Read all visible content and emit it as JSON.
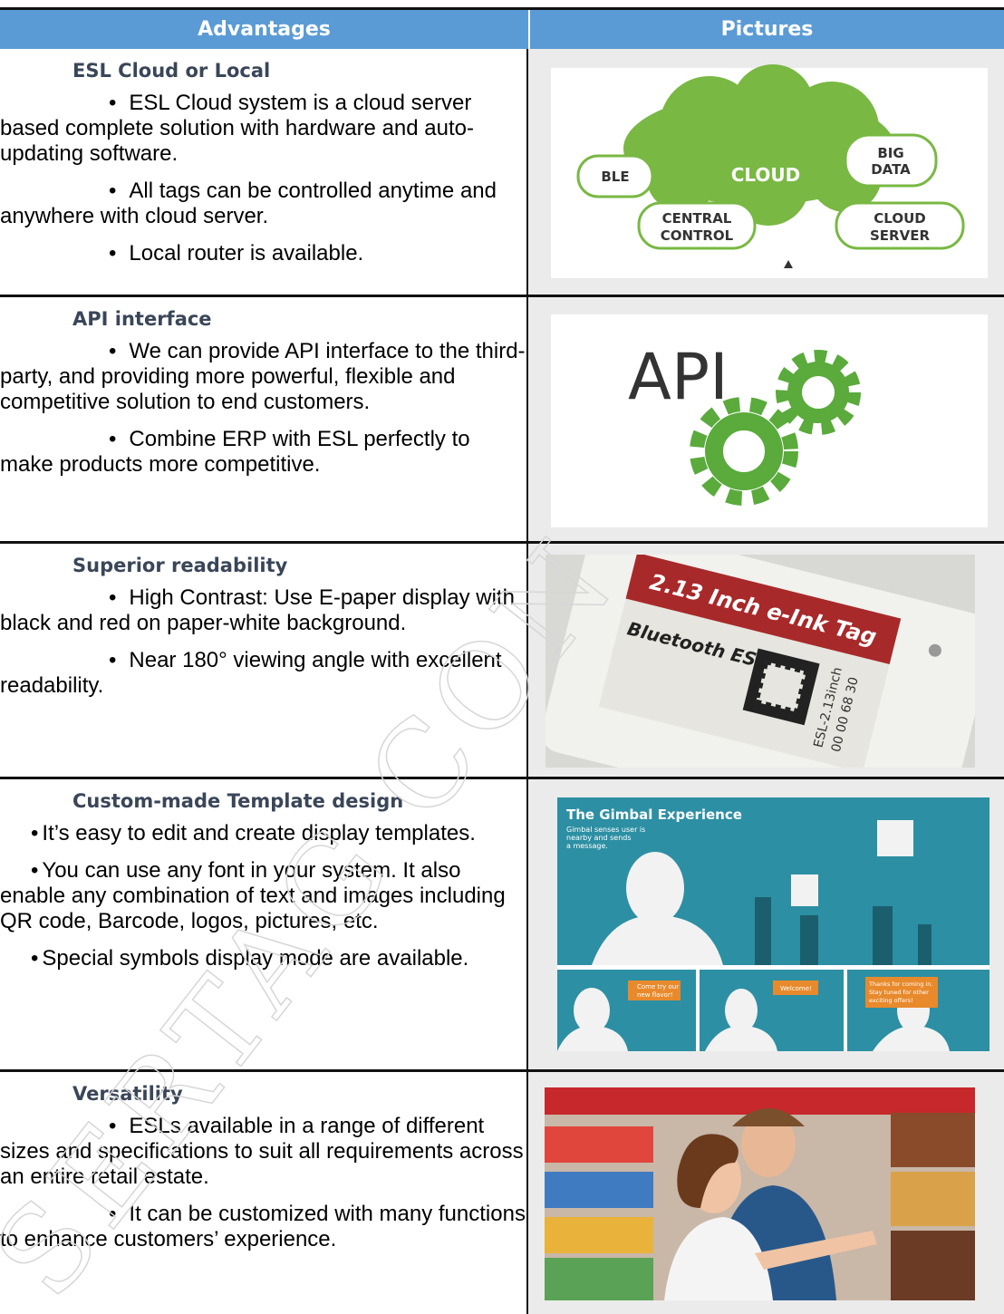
{
  "table": {
    "headers": [
      "Advantages",
      "Pictures"
    ],
    "rows": [
      {
        "title": "ESL Cloud or Local",
        "bullets": [
          "ESL Cloud system is a cloud server based complete solution with hardware and auto-updating software.",
          "All tags can be controlled anytime and anywhere with cloud server.",
          "Local router is available."
        ],
        "picture": [
          "BLE",
          "CLOUD",
          "BIG",
          "DATA",
          "CENTRAL",
          "CONTROL",
          "CLOUD",
          "SERVER"
        ]
      },
      {
        "title": "API interface",
        "bullets": [
          "We can provide API interface to the third- party, and providing more powerful, flexible and competitive solution to end customers.",
          "Combine ERP with ESL perfectly to make products more competitive."
        ],
        "picture": [
          "API"
        ]
      },
      {
        "title": "Superior readability",
        "bullets": [
          "High Contrast: Use E-paper display with black and red on paper-white background.",
          "Near 180° viewing angle with excellent readability."
        ],
        "picture": [
          "2.13 Inch e-Ink Tag",
          "Bluetooth ESL",
          "ESL-2.13inch",
          "00 00 68 30"
        ]
      },
      {
        "title": "Custom-made Template design",
        "bullets": [
          "It’s easy to edit and create display templates.",
          "You can use any font in your system. It also enable any combination of text and images including QR code, Barcode, logos, pictures, etc.",
          "Special symbols display mode are available."
        ],
        "picture": [
          "The Gimbal Experience",
          "Gimbal senses user is",
          "nearby and sends",
          "a message.",
          "Come try our",
          "new flavor!",
          "Welcome!",
          "Thanks for coming in.",
          "Stay tuned for other",
          "exciting offers!"
        ]
      },
      {
        "title": "Versatility",
        "bullets": [
          "ESLs available in a range of different sizes and specifications to suit all requirements across an entire retail estate.",
          "It can be customized with many functions to enhance customers’ experience."
        ],
        "picture": []
      }
    ]
  },
  "watermark": "SERTAG CON"
}
